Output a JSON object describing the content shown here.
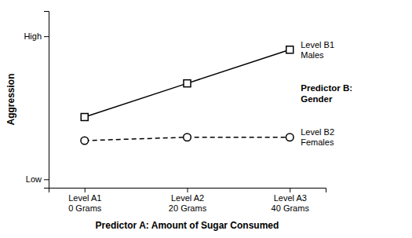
{
  "chart_data": {
    "type": "line",
    "xlabel": "Predictor A: Amount of Sugar Consumed",
    "ylabel": "Aggression",
    "categories": [
      "Level A1\n0 Grams",
      "Level A2\n20 Grams",
      "Level A3\n40 Grams"
    ],
    "series": [
      {
        "name": "Level B1\nMales",
        "color": "#000000",
        "marker": "square",
        "line_style": "solid",
        "values": [
          0.42,
          0.62,
          0.82
        ]
      },
      {
        "name": "Level B2\nFemales",
        "color": "#000000",
        "marker": "circle",
        "line_style": "dashed",
        "values": [
          0.28,
          0.3,
          0.3
        ]
      }
    ],
    "annotations": [
      "Predictor B:\nGender"
    ],
    "ylim": [
      0.0,
      1.05
    ],
    "yticks": [
      {
        "value": 0.05,
        "label": "Low"
      },
      {
        "value": 0.9,
        "label": "High"
      }
    ],
    "grid": false
  }
}
